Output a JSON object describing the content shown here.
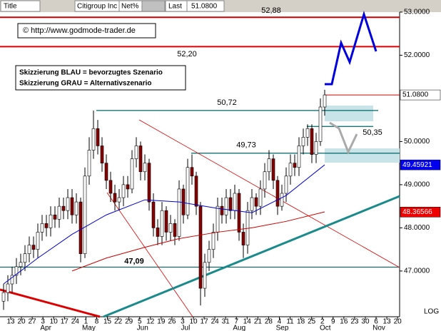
{
  "header": {
    "title_label": "Title",
    "symbol": "Citigroup Inc",
    "net_label": "Net%",
    "last_label": "Last",
    "last_value": "51.0800"
  },
  "notes": {
    "copyright": "© http://www.godmode-trader.de",
    "blue": "Skizzierung BLAU = bevorzugtes Szenario",
    "gray": "Skizzierung GRAU = Alternativszenario",
    "scale": "LOG"
  },
  "chart_data": {
    "type": "candlestick",
    "ylim": [
      45.94,
      53.28
    ],
    "yticks": [
      {
        "value": 47,
        "label": "47.0000"
      },
      {
        "value": 48,
        "label": "48.0000"
      },
      {
        "value": 49,
        "label": "49.0000"
      },
      {
        "value": 50,
        "label": "50.0000"
      },
      {
        "value": 52,
        "label": "52.0000"
      },
      {
        "value": 53,
        "label": "53.0000"
      }
    ],
    "log_scale": true,
    "up_color": "#ffffff",
    "down_color": "#8b0000",
    "xtick_labels": [
      "13",
      "20",
      "27",
      "3",
      "10",
      "17",
      "24",
      "1",
      "8",
      "15",
      "22",
      "29",
      "5",
      "12",
      "19",
      "26",
      "3",
      "10",
      "17",
      "24",
      "31",
      "7",
      "14",
      "21",
      "28",
      "4",
      "11",
      "18",
      "25",
      "2",
      "9",
      "16",
      "23",
      "30",
      "6",
      "13",
      "20"
    ],
    "months": {
      "labels": [
        "Apr",
        "May",
        "Jun",
        "Jul",
        "Aug",
        "Sep",
        "Oct",
        "Nov"
      ],
      "tick_index": [
        3,
        7,
        12,
        16,
        21,
        25,
        29,
        34
      ]
    },
    "candles": [
      [
        46.3,
        46.7,
        46.1,
        46.5
      ],
      [
        46.5,
        46.9,
        46.3,
        46.7
      ],
      [
        46.7,
        47.1,
        46.5,
        46.9
      ],
      [
        46.9,
        47.3,
        46.7,
        47.1
      ],
      [
        47.1,
        47.4,
        46.9,
        47.2
      ],
      [
        47.2,
        47.6,
        47.0,
        47.4
      ],
      [
        47.4,
        47.8,
        47.2,
        47.6
      ],
      [
        47.6,
        47.8,
        47.3,
        47.5
      ],
      [
        47.5,
        48.1,
        47.3,
        47.9
      ],
      [
        47.9,
        48.3,
        47.7,
        48.1
      ],
      [
        48.1,
        48.3,
        47.8,
        48.0
      ],
      [
        48.0,
        48.5,
        47.8,
        48.3
      ],
      [
        48.3,
        48.5,
        48.0,
        48.2
      ],
      [
        48.2,
        48.7,
        48.0,
        48.5
      ],
      [
        48.5,
        48.7,
        48.2,
        48.4
      ],
      [
        48.4,
        48.9,
        48.2,
        48.7
      ],
      [
        48.7,
        48.9,
        48.1,
        48.3
      ],
      [
        48.3,
        48.8,
        48.1,
        48.6
      ],
      [
        48.6,
        48.7,
        47.2,
        47.4
      ],
      [
        47.4,
        49.4,
        47.3,
        49.2
      ],
      [
        49.2,
        50.1,
        49.0,
        49.8
      ],
      [
        49.8,
        50.72,
        49.6,
        50.3
      ],
      [
        50.3,
        50.5,
        49.7,
        49.9
      ],
      [
        49.9,
        50.1,
        49.3,
        49.5
      ],
      [
        49.5,
        49.7,
        48.9,
        49.1
      ],
      [
        49.1,
        49.3,
        48.6,
        48.8
      ],
      [
        48.8,
        49.0,
        48.4,
        48.6
      ],
      [
        48.6,
        48.9,
        48.4,
        48.7
      ],
      [
        48.7,
        49.2,
        48.5,
        49.0
      ],
      [
        49.0,
        49.2,
        48.7,
        48.9
      ],
      [
        48.9,
        49.8,
        48.8,
        49.6
      ],
      [
        49.6,
        50.1,
        49.4,
        49.9
      ],
      [
        49.9,
        50.0,
        49.1,
        49.3
      ],
      [
        49.3,
        49.7,
        49.1,
        49.5
      ],
      [
        49.5,
        49.6,
        48.4,
        48.6
      ],
      [
        48.6,
        48.8,
        47.8,
        48.0
      ],
      [
        48.0,
        48.2,
        47.6,
        47.8
      ],
      [
        47.8,
        48.6,
        47.6,
        48.4
      ],
      [
        48.4,
        48.5,
        47.7,
        47.9
      ],
      [
        47.9,
        48.3,
        47.7,
        48.1
      ],
      [
        48.1,
        48.2,
        47.6,
        47.8
      ],
      [
        47.8,
        49.1,
        47.7,
        48.9
      ],
      [
        48.9,
        49.0,
        48.1,
        48.3
      ],
      [
        48.3,
        49.6,
        48.2,
        49.4
      ],
      [
        49.4,
        49.7,
        49.0,
        49.2
      ],
      [
        49.2,
        49.3,
        48.3,
        48.5
      ],
      [
        48.5,
        48.6,
        46.2,
        46.6
      ],
      [
        46.6,
        47.4,
        46.4,
        47.2
      ],
      [
        47.2,
        47.7,
        47.0,
        47.5
      ],
      [
        47.5,
        48.1,
        47.3,
        47.9
      ],
      [
        47.9,
        48.7,
        47.7,
        48.5
      ],
      [
        48.5,
        48.7,
        48.1,
        48.3
      ],
      [
        48.3,
        48.9,
        48.1,
        48.7
      ],
      [
        48.7,
        48.9,
        48.2,
        48.4
      ],
      [
        48.4,
        49.0,
        48.2,
        48.8
      ],
      [
        48.8,
        48.9,
        47.7,
        47.9
      ],
      [
        47.9,
        48.1,
        47.3,
        47.6
      ],
      [
        47.6,
        48.6,
        47.4,
        48.4
      ],
      [
        48.4,
        48.9,
        48.2,
        48.7
      ],
      [
        48.7,
        48.8,
        48.3,
        48.5
      ],
      [
        48.5,
        49.1,
        48.3,
        48.9
      ],
      [
        48.9,
        49.5,
        48.7,
        49.3
      ],
      [
        49.3,
        49.8,
        49.1,
        49.6
      ],
      [
        49.6,
        49.7,
        48.9,
        49.1
      ],
      [
        49.1,
        49.2,
        48.3,
        48.5
      ],
      [
        48.5,
        49.0,
        48.4,
        48.8
      ],
      [
        48.8,
        49.4,
        48.6,
        49.2
      ],
      [
        49.2,
        49.7,
        49.0,
        49.5
      ],
      [
        49.5,
        49.7,
        49.2,
        49.4
      ],
      [
        49.4,
        50.1,
        49.2,
        49.9
      ],
      [
        49.9,
        50.3,
        49.7,
        50.1
      ],
      [
        50.1,
        50.4,
        49.9,
        50.3
      ],
      [
        50.3,
        50.4,
        49.5,
        49.7
      ],
      [
        49.7,
        50.2,
        49.5,
        50.0
      ],
      [
        50.0,
        51.0,
        49.9,
        50.8
      ],
      [
        50.8,
        51.2,
        50.6,
        51.08
      ]
    ],
    "lines": [
      {
        "color": "#0000cc",
        "x": [
          0,
          8,
          16,
          24,
          33,
          41,
          50,
          58,
          66,
          75
        ],
        "values": [
          46.7,
          47.3,
          47.85,
          48.3,
          48.65,
          48.6,
          48.45,
          48.35,
          48.75,
          49.46
        ]
      },
      {
        "color": "#cc0000",
        "x": [
          16,
          24,
          33,
          41,
          50,
          58,
          66,
          75
        ],
        "values": [
          47.0,
          47.3,
          47.55,
          47.75,
          47.9,
          48.0,
          48.15,
          48.37
        ]
      }
    ],
    "levels": {
      "values": [
        52.88,
        52.2,
        50.72,
        50.35,
        49.73,
        47.09
      ],
      "value_labels": [
        "52,88",
        "52,20",
        "50,72",
        "50,35",
        "49,73",
        "47,09"
      ],
      "colors": [
        "#cc0000",
        "#dd0000",
        "#006666",
        "#006666",
        "#006666",
        "#006666"
      ]
    },
    "markers": {
      "values": [
        51.08,
        49.45921,
        48.36566
      ],
      "value_labels": [
        "51.0800",
        "49.45921",
        "48.36566"
      ],
      "fills": [
        "#ffffff",
        "#0000ee",
        "#ee0000"
      ],
      "text_colors": [
        "#000000",
        "#ffffff",
        "#ffffff"
      ]
    }
  }
}
